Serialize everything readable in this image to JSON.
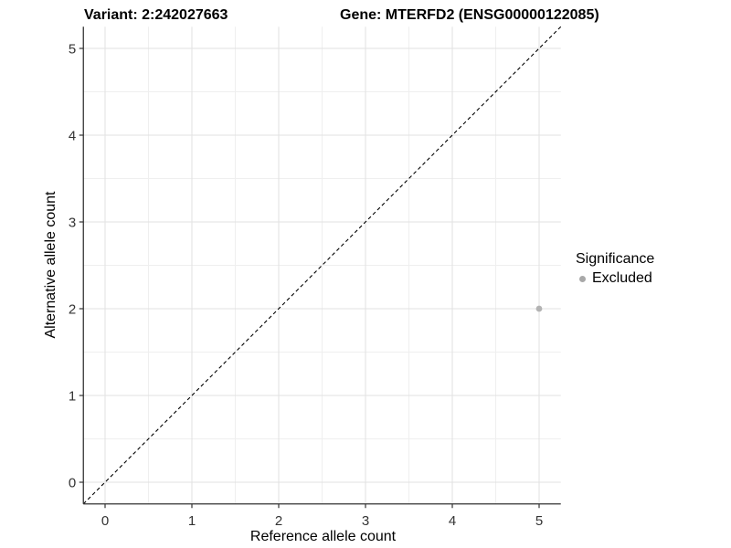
{
  "figure": {
    "title_left": "Variant: 2:242027663",
    "title_right": "Gene: MTERFD2 (ENSG00000122085)"
  },
  "chart_data": {
    "type": "scatter",
    "title_left": "Variant: 2:242027663",
    "title_right": "Gene: MTERFD2 (ENSG00000122085)",
    "xlabel": "Reference allele count",
    "ylabel": "Alternative allele count",
    "xlim": [
      -0.25,
      5.25
    ],
    "ylim": [
      -0.25,
      5.25
    ],
    "x_ticks": [
      0,
      1,
      2,
      3,
      4,
      5
    ],
    "y_ticks": [
      0,
      1,
      2,
      3,
      4,
      5
    ],
    "grid": "major and minor gridlines, white panel",
    "reference_line": {
      "type": "identity y=x",
      "style": "dashed",
      "color": "#000000"
    },
    "series": [
      {
        "name": "Excluded",
        "color": "#b3b3b3",
        "marker": "circle",
        "marker_radius": 3.4,
        "points": [
          {
            "x": 5,
            "y": 2
          }
        ]
      }
    ],
    "legend": {
      "title": "Significance",
      "position": "right",
      "entries": [
        {
          "label": "Excluded",
          "color": "#a8a8a8"
        }
      ]
    }
  },
  "colors": {
    "background": "#ffffff",
    "axis_line": "#333333",
    "tick_text": "#333333",
    "grid_major": "#e2e2e2",
    "grid_minor": "#efefef",
    "point": "#b3b3b3",
    "identity_line": "#000000"
  }
}
